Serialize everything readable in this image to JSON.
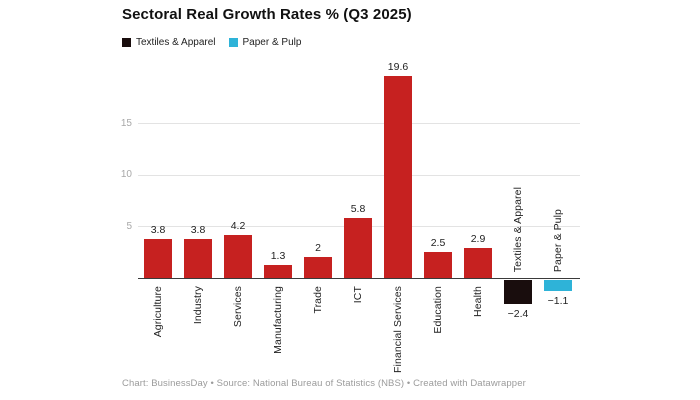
{
  "title": "Sectoral Real Growth Rates % (Q3 2025)",
  "legend": [
    {
      "label": "Textiles & Apparel",
      "color": "#190d0d"
    },
    {
      "label": "Paper & Pulp",
      "color": "#2eb3d8"
    }
  ],
  "footer": "Chart: BusinessDay • Source: National Bureau of Statistics (NBS) • Created with Datawrapper",
  "colors": {
    "bar_default": "#c62120",
    "bar_textiles": "#190d0d",
    "bar_paper": "#2eb3d8",
    "gridline": "#e3e3e3",
    "axis_line": "#3a3a3a",
    "tick_text": "#a8a8a8",
    "label_text": "#222222"
  },
  "chart_data": {
    "type": "bar",
    "title": "Sectoral Real Growth Rates % (Q3 2025)",
    "categories": [
      "Agriculture",
      "Industry",
      "Services",
      "Manufacturing",
      "Trade",
      "ICT",
      "Financial Services",
      "Education",
      "Health",
      "Textiles & Apparel",
      "Paper & Pulp"
    ],
    "values": [
      3.8,
      3.8,
      4.2,
      1.3,
      2,
      5.8,
      19.6,
      2.5,
      2.9,
      -2.4,
      -1.1
    ],
    "value_labels": [
      "3.8",
      "3.8",
      "4.2",
      "1.3",
      "2",
      "5.8",
      "19.6",
      "2.5",
      "2.9",
      "−2.4",
      "−1.1"
    ],
    "bar_colors": [
      "#c62120",
      "#c62120",
      "#c62120",
      "#c62120",
      "#c62120",
      "#c62120",
      "#c62120",
      "#c62120",
      "#c62120",
      "#190d0d",
      "#2eb3d8"
    ],
    "series_note": "negative-value categories use their legend colors; all others use default red",
    "xlabel": "",
    "ylabel": "",
    "y_ticks": [
      5,
      10,
      15
    ],
    "ylim": [
      -3.2,
      20.5
    ],
    "grid": true,
    "legend_position": "top-left",
    "x_tick_rotation_deg": 90
  }
}
